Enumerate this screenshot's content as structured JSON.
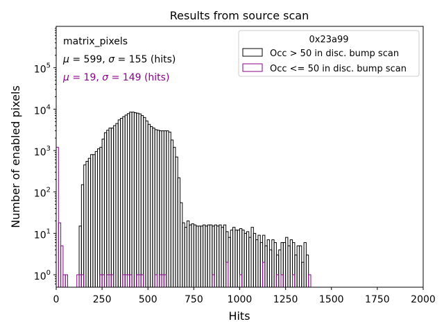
{
  "chart_data": {
    "type": "histogram-step",
    "title": "Results from source scan",
    "xlabel": "Hits",
    "ylabel": "Number of enabled pixels",
    "xlim": [
      0,
      2000
    ],
    "ylim": [
      0.5,
      1000000
    ],
    "yscale": "log",
    "bin_width": 12.5,
    "x_ticks": [
      0,
      250,
      500,
      750,
      1000,
      1250,
      1500,
      1750,
      2000
    ],
    "x_tick_labels": [
      "0",
      "250",
      "500",
      "750",
      "1000",
      "1250",
      "1500",
      "1750",
      "2000"
    ],
    "y_ticks": [
      1,
      10,
      100,
      1000,
      10000,
      100000
    ],
    "y_tick_labels": [
      {
        "base": "10",
        "exp": "0"
      },
      {
        "base": "10",
        "exp": "1"
      },
      {
        "base": "10",
        "exp": "2"
      },
      {
        "base": "10",
        "exp": "3"
      },
      {
        "base": "10",
        "exp": "4"
      },
      {
        "base": "10",
        "exp": "5"
      }
    ],
    "annotations": {
      "name": "matrix_pixels",
      "stats_black": {
        "mu_sym": "μ",
        "sep": " = 599, ",
        "sigma_sym": "σ",
        "tail": " = 155 (hits)",
        "color": "#000000"
      },
      "stats_purple": {
        "mu_sym": "μ",
        "sep": " = 19, ",
        "sigma_sym": "σ",
        "tail": " = 149 (hits)",
        "color": "#8b008b"
      }
    },
    "legend": {
      "title": "0x23a99",
      "placement": "upper right",
      "entries": [
        "Occ > 50 in disc. bump scan",
        "Occ <= 50 in disc. bump scan"
      ]
    },
    "series": [
      {
        "name": "Occ > 50 in disc. bump scan",
        "color": "#000000",
        "bins": [
          [
            125,
            15
          ],
          [
            137.5,
            150
          ],
          [
            150,
            450
          ],
          [
            162.5,
            550
          ],
          [
            175,
            650
          ],
          [
            187.5,
            800
          ],
          [
            200,
            800
          ],
          [
            212.5,
            950
          ],
          [
            225,
            1100
          ],
          [
            237.5,
            1200
          ],
          [
            250,
            1900
          ],
          [
            262.5,
            2700
          ],
          [
            275,
            3100
          ],
          [
            287.5,
            3500
          ],
          [
            300,
            3500
          ],
          [
            312.5,
            4000
          ],
          [
            325,
            4500
          ],
          [
            337.5,
            5500
          ],
          [
            350,
            6000
          ],
          [
            362.5,
            6600
          ],
          [
            375,
            7200
          ],
          [
            387.5,
            7800
          ],
          [
            400,
            8500
          ],
          [
            412.5,
            8500
          ],
          [
            425,
            8200
          ],
          [
            437.5,
            8000
          ],
          [
            450,
            7700
          ],
          [
            462.5,
            7000
          ],
          [
            475,
            6300
          ],
          [
            487.5,
            5200
          ],
          [
            500,
            4300
          ],
          [
            512.5,
            3800
          ],
          [
            525,
            3500
          ],
          [
            537.5,
            3200
          ],
          [
            550,
            3100
          ],
          [
            562.5,
            3000
          ],
          [
            575,
            3000
          ],
          [
            587.5,
            3000
          ],
          [
            600,
            3000
          ],
          [
            612.5,
            2800
          ],
          [
            625,
            1800
          ],
          [
            637.5,
            1200
          ],
          [
            650,
            700
          ],
          [
            662.5,
            220
          ],
          [
            675,
            55
          ],
          [
            687.5,
            18
          ],
          [
            700,
            14
          ],
          [
            712.5,
            20
          ],
          [
            725,
            16
          ],
          [
            737.5,
            17
          ],
          [
            750,
            16
          ],
          [
            762.5,
            15
          ],
          [
            775,
            15
          ],
          [
            787.5,
            15
          ],
          [
            800,
            16
          ],
          [
            812.5,
            15
          ],
          [
            825,
            16
          ],
          [
            837.5,
            16
          ],
          [
            850,
            15
          ],
          [
            862.5,
            16
          ],
          [
            875,
            15
          ],
          [
            887.5,
            16
          ],
          [
            900,
            14
          ],
          [
            912.5,
            16
          ],
          [
            925,
            11
          ],
          [
            937.5,
            8
          ],
          [
            950,
            12
          ],
          [
            962.5,
            14
          ],
          [
            975,
            12
          ],
          [
            987.5,
            12
          ],
          [
            1000,
            13
          ],
          [
            1012.5,
            12
          ],
          [
            1025,
            10
          ],
          [
            1037.5,
            11
          ],
          [
            1050,
            8
          ],
          [
            1062.5,
            14
          ],
          [
            1075,
            10
          ],
          [
            1087.5,
            7
          ],
          [
            1100,
            9
          ],
          [
            1112.5,
            6
          ],
          [
            1125,
            9
          ],
          [
            1137.5,
            5
          ],
          [
            1150,
            7
          ],
          [
            1162.5,
            4
          ],
          [
            1175,
            7
          ],
          [
            1187.5,
            6
          ],
          [
            1200,
            3
          ],
          [
            1212.5,
            4
          ],
          [
            1225,
            6
          ],
          [
            1237.5,
            6
          ],
          [
            1250,
            8
          ],
          [
            1262.5,
            5
          ],
          [
            1275,
            7
          ],
          [
            1287.5,
            6
          ],
          [
            1300,
            3
          ],
          [
            1312.5,
            5
          ],
          [
            1325,
            5
          ],
          [
            1337.5,
            2
          ],
          [
            1350,
            6
          ],
          [
            1362.5,
            3
          ]
        ]
      },
      {
        "name": "Occ <= 50 in disc. bump scan",
        "color": "#8b008b",
        "bins": [
          [
            0,
            1200
          ],
          [
            12.5,
            18
          ],
          [
            25,
            5
          ],
          [
            37.5,
            1
          ],
          [
            50,
            1
          ],
          [
            112.5,
            1
          ],
          [
            125,
            1
          ],
          [
            137.5,
            1
          ],
          [
            237.5,
            1
          ],
          [
            250,
            1
          ],
          [
            275,
            1
          ],
          [
            287.5,
            1
          ],
          [
            300,
            1
          ],
          [
            362.5,
            1
          ],
          [
            375,
            1
          ],
          [
            387.5,
            1
          ],
          [
            400,
            1
          ],
          [
            437.5,
            1
          ],
          [
            450,
            1
          ],
          [
            462.5,
            1
          ],
          [
            537.5,
            1
          ],
          [
            562.5,
            1
          ],
          [
            575,
            1
          ],
          [
            587.5,
            1
          ],
          [
            850,
            1
          ],
          [
            925,
            2
          ],
          [
            1000,
            1
          ],
          [
            1125,
            2
          ],
          [
            1200,
            1
          ],
          [
            1225,
            1
          ],
          [
            1287.5,
            1
          ],
          [
            1375,
            1
          ]
        ]
      }
    ]
  }
}
